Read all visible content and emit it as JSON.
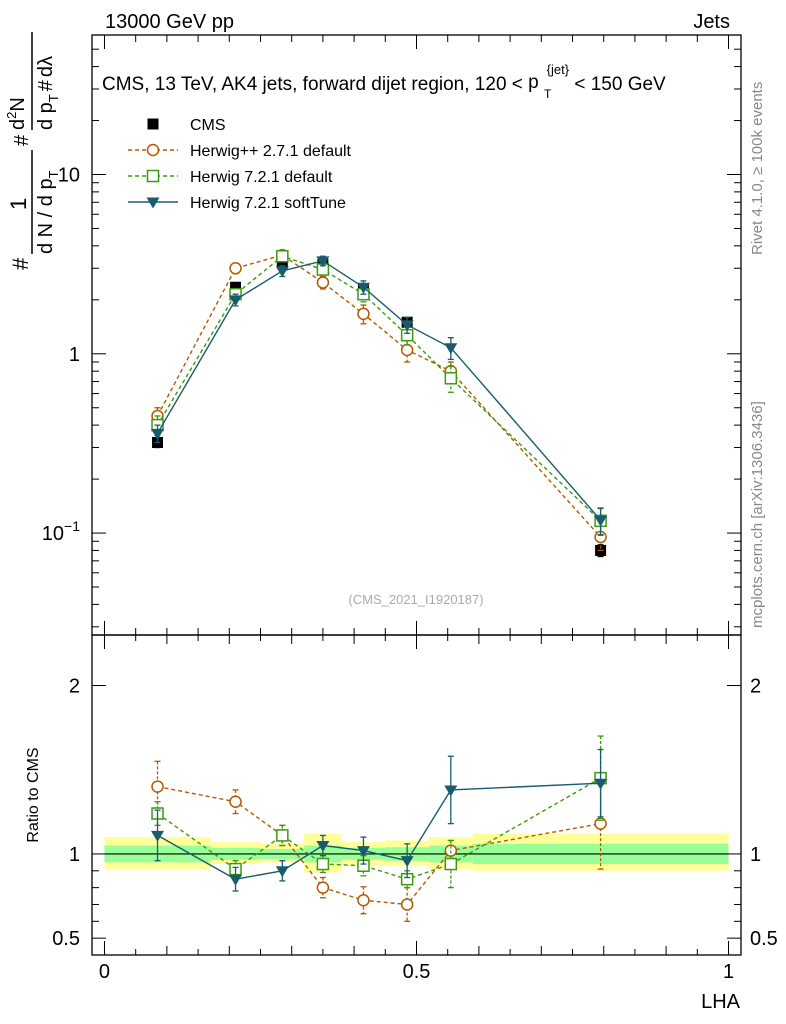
{
  "header": {
    "energy_label": "13000 GeV pp",
    "category_label": "Jets",
    "title_prefix": "CMS, 13 TeV, AK4 jets, forward dijet region, 120 <",
    "title_sym": "p",
    "title_sub": "T",
    "title_sup": "{jet}",
    "title_suffix": "< 150 GeV",
    "side_label_top": "Rivet 4.1.0, ≥ 100k events",
    "side_label_bottom": "mcplots.cern.ch [arXiv:1306.3436]",
    "watermark": "(CMS_2021_I1920187)"
  },
  "ylabel_upper": {
    "hash1": "#",
    "one": "1",
    "denom": "d N / d p",
    "denom_sub": "T",
    "hash2": "#",
    "num": "d",
    "num_sup": "2",
    "num_n": "N",
    "hash3": "#",
    "dpt": "d p",
    "dpt_sub": "T",
    "dlam": "dλ"
  },
  "colors": {
    "cms": "#000000",
    "herwigpp": "#b35900",
    "herwig721": "#3a9b0f",
    "softtune": "#1a5c6e",
    "band_yellow": "#ffff99",
    "band_green": "#99ff99"
  },
  "chart_data": [
    {
      "type": "line",
      "panel": "main",
      "yscale": "log",
      "ylim": [
        0.027,
        60
      ],
      "xlim": [
        -0.02,
        1.02
      ],
      "y_ticks": [
        {
          "value": 0.1,
          "base": "10",
          "exp": "−1"
        },
        {
          "value": 1,
          "base": "1",
          "exp": ""
        },
        {
          "value": 10,
          "base": "10",
          "exp": ""
        }
      ],
      "x": [
        0.085,
        0.21,
        0.285,
        0.35,
        0.415,
        0.485,
        0.555,
        0.795
      ],
      "series": [
        {
          "name": "CMS",
          "color_key": "cms",
          "marker": "square-filled",
          "dashed": false,
          "show_line": false,
          "values": [
            0.32,
            2.35,
            3.2,
            3.15,
            2.3,
            1.5,
            0.78,
            0.08
          ],
          "err": [
            0.02,
            0.12,
            0.12,
            0.12,
            0.1,
            0.08,
            0.05,
            0.006
          ]
        },
        {
          "name": "Herwig++ 2.7.1 default",
          "color_key": "herwigpp",
          "marker": "circle-open",
          "dashed": true,
          "show_line": true,
          "values": [
            0.45,
            3.0,
            3.55,
            2.5,
            1.67,
            1.05,
            0.8,
            0.095
          ],
          "err": [
            0.05,
            0.2,
            0.2,
            0.2,
            0.2,
            0.15,
            0.1,
            0.015
          ]
        },
        {
          "name": "Herwig 7.2.1 default",
          "color_key": "herwig721",
          "marker": "square-open",
          "dashed": true,
          "show_line": true,
          "values": [
            0.4,
            2.15,
            3.5,
            2.95,
            2.15,
            1.27,
            0.73,
            0.117
          ],
          "err": [
            0.05,
            0.15,
            0.2,
            0.2,
            0.2,
            0.15,
            0.12,
            0.02
          ]
        },
        {
          "name": "Herwig 7.2.1 softTune",
          "color_key": "softtune",
          "marker": "triangle-down-filled",
          "dashed": false,
          "show_line": true,
          "values": [
            0.36,
            2.0,
            2.9,
            3.3,
            2.35,
            1.45,
            1.08,
            0.118
          ],
          "err": [
            0.04,
            0.15,
            0.2,
            0.2,
            0.2,
            0.15,
            0.15,
            0.02
          ]
        }
      ]
    },
    {
      "type": "line",
      "panel": "ratio",
      "ylabel": "Ratio to CMS",
      "xlabel": "LHA",
      "ylim": [
        0.4,
        2.3
      ],
      "xlim": [
        -0.02,
        1.02
      ],
      "x_ticks": [
        {
          "value": 0,
          "label": "0"
        },
        {
          "value": 0.5,
          "label": "0.5"
        },
        {
          "value": 1,
          "label": "1"
        }
      ],
      "y_ticks": [
        {
          "value": 0.5,
          "label": "0.5"
        },
        {
          "value": 1,
          "label": "1"
        },
        {
          "value": 2,
          "label": "2"
        }
      ],
      "bands": [
        {
          "x0": 0.0,
          "x1": 0.17,
          "yellow": [
            0.91,
            1.1
          ],
          "green": [
            0.95,
            1.05
          ]
        },
        {
          "x0": 0.17,
          "x1": 0.25,
          "yellow": [
            0.94,
            1.07
          ],
          "green": [
            0.965,
            1.035
          ]
        },
        {
          "x0": 0.25,
          "x1": 0.32,
          "yellow": [
            0.95,
            1.06
          ],
          "green": [
            0.97,
            1.03
          ]
        },
        {
          "x0": 0.32,
          "x1": 0.38,
          "yellow": [
            0.89,
            1.12
          ],
          "green": [
            0.95,
            1.05
          ]
        },
        {
          "x0": 0.38,
          "x1": 0.45,
          "yellow": [
            0.93,
            1.07
          ],
          "green": [
            0.965,
            1.035
          ]
        },
        {
          "x0": 0.45,
          "x1": 0.52,
          "yellow": [
            0.93,
            1.08
          ],
          "green": [
            0.96,
            1.04
          ]
        },
        {
          "x0": 0.52,
          "x1": 0.59,
          "yellow": [
            0.91,
            1.1
          ],
          "green": [
            0.95,
            1.05
          ]
        },
        {
          "x0": 0.59,
          "x1": 1.0,
          "yellow": [
            0.9,
            1.12
          ],
          "green": [
            0.94,
            1.06
          ]
        }
      ],
      "x": [
        0.085,
        0.21,
        0.285,
        0.35,
        0.415,
        0.485,
        0.555,
        0.795
      ],
      "series": [
        {
          "name": "Herwig++ 2.7.1 default",
          "color_key": "herwigpp",
          "marker": "circle-open",
          "dashed": true,
          "values": [
            1.4,
            1.31,
            1.11,
            0.8,
            0.725,
            0.7,
            1.02,
            1.18
          ],
          "err": [
            0.15,
            0.07,
            0.06,
            0.06,
            0.08,
            0.1,
            0.06,
            0.27
          ]
        },
        {
          "name": "Herwig 7.2.1 default",
          "color_key": "herwig721",
          "marker": "square-open",
          "dashed": true,
          "values": [
            1.24,
            0.91,
            1.11,
            0.94,
            0.93,
            0.85,
            0.94,
            1.45
          ],
          "err": [
            0.07,
            0.05,
            0.06,
            0.05,
            0.06,
            0.05,
            0.14,
            0.25
          ]
        },
        {
          "name": "Herwig 7.2.1 softTune",
          "color_key": "softtune",
          "marker": "triangle-down-filled",
          "dashed": false,
          "values": [
            1.11,
            0.85,
            0.9,
            1.05,
            1.02,
            0.96,
            1.38,
            1.42
          ],
          "err": [
            0.15,
            0.07,
            0.06,
            0.06,
            0.08,
            0.1,
            0.2,
            0.2
          ]
        }
      ]
    }
  ]
}
